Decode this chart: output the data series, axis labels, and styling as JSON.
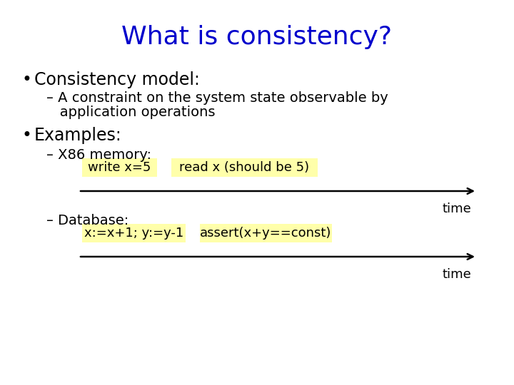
{
  "title": "What is consistency?",
  "title_color": "#0000CC",
  "title_fontsize": 26,
  "bg_color": "#FFFFFF",
  "bullet1": "Consistency model:",
  "sub1_line1": "– A constraint on the system state observable by",
  "sub1_line2": "   application operations",
  "bullet2": "Examples:",
  "sub2": "– X86 memory:",
  "sub3": "– Database:",
  "box1_text": "write x=5",
  "box2_text": "read x (should be 5)",
  "box3_text": "x:=x+1; y:=y-1",
  "box4_text": "assert(x+y==const)",
  "box_bg": "#FFFFAA",
  "time_label": "time",
  "arrow_color": "#000000",
  "text_color": "#000000",
  "font_size_title": 26,
  "font_size_bullet": 17,
  "font_size_sub": 14,
  "font_size_box": 13,
  "font_size_time": 13
}
